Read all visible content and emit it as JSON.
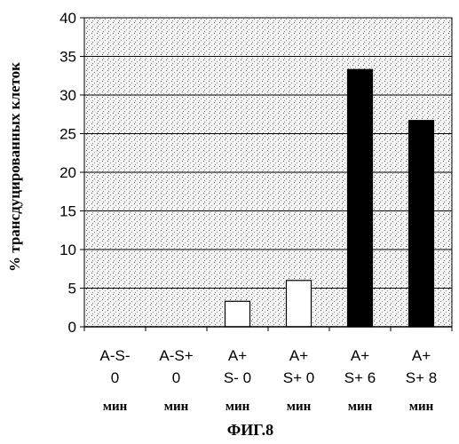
{
  "chart_data": {
    "type": "bar",
    "ylabel": "% трансдуцированных клеток",
    "ylim": [
      0,
      40
    ],
    "yticks": [
      0,
      5,
      10,
      15,
      20,
      25,
      30,
      35,
      40
    ],
    "grid": true,
    "categories": [
      {
        "lines": [
          "A-S-",
          "0"
        ],
        "unit": "мин",
        "value": 0,
        "fill": "#ffffff"
      },
      {
        "lines": [
          "A-S+",
          "0"
        ],
        "unit": "мин",
        "value": 0,
        "fill": "#ffffff"
      },
      {
        "lines": [
          "A+",
          "S- 0"
        ],
        "unit": "мин",
        "value": 3.3,
        "fill": "#ffffff"
      },
      {
        "lines": [
          "A+",
          "S+ 0"
        ],
        "unit": "мин",
        "value": 6,
        "fill": "#ffffff"
      },
      {
        "lines": [
          "A+",
          "S+ 6"
        ],
        "unit": "мин",
        "value": 33.3,
        "fill": "#000000"
      },
      {
        "lines": [
          "A+",
          "S+ 8"
        ],
        "unit": "мин",
        "value": 26.7,
        "fill": "#000000"
      }
    ],
    "caption": "ФИГ.8"
  }
}
